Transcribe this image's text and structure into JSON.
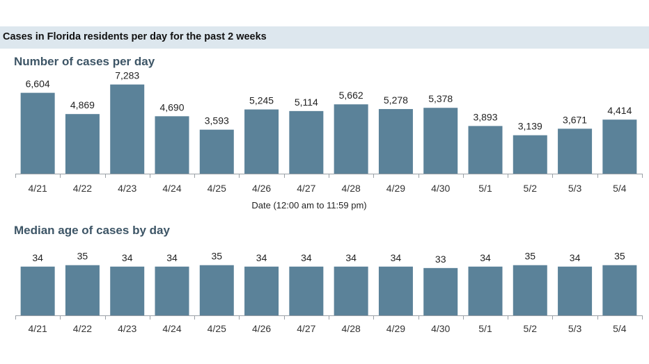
{
  "header": {
    "title": "Cases in Florida residents per day for the past 2 weeks"
  },
  "colors": {
    "bar": "#5b8299",
    "band": "#dde7ee",
    "axis": "#9aa0a6"
  },
  "chart_data": [
    {
      "type": "bar",
      "title": "Number of cases per day",
      "xlabel": "Date (12:00 am to 11:59 pm)",
      "ylabel": "",
      "categories": [
        "4/21",
        "4/22",
        "4/23",
        "4/24",
        "4/25",
        "4/26",
        "4/27",
        "4/28",
        "4/29",
        "4/30",
        "5/1",
        "5/2",
        "5/3",
        "5/4"
      ],
      "values": [
        6604,
        4869,
        7283,
        4690,
        3593,
        5245,
        5114,
        5662,
        5278,
        5378,
        3893,
        3139,
        3671,
        4414
      ],
      "value_labels": [
        "6,604",
        "4,869",
        "7,283",
        "4,690",
        "3,593",
        "5,245",
        "5,114",
        "5,662",
        "5,278",
        "5,378",
        "3,893",
        "3,139",
        "3,671",
        "4,414"
      ],
      "ylim": [
        0,
        8000
      ],
      "grid": false,
      "legend": "none"
    },
    {
      "type": "bar",
      "title": "Median age of cases by day",
      "xlabel": "",
      "ylabel": "",
      "categories": [
        "4/21",
        "4/22",
        "4/23",
        "4/24",
        "4/25",
        "4/26",
        "4/27",
        "4/28",
        "4/29",
        "4/30",
        "5/1",
        "5/2",
        "5/3",
        "5/4"
      ],
      "values": [
        34,
        35,
        34,
        34,
        35,
        34,
        34,
        34,
        34,
        33,
        34,
        35,
        34,
        35
      ],
      "value_labels": [
        "34",
        "35",
        "34",
        "34",
        "35",
        "34",
        "34",
        "34",
        "34",
        "33",
        "34",
        "35",
        "34",
        "35"
      ],
      "ylim": [
        0,
        40
      ],
      "grid": false,
      "legend": "none"
    }
  ]
}
